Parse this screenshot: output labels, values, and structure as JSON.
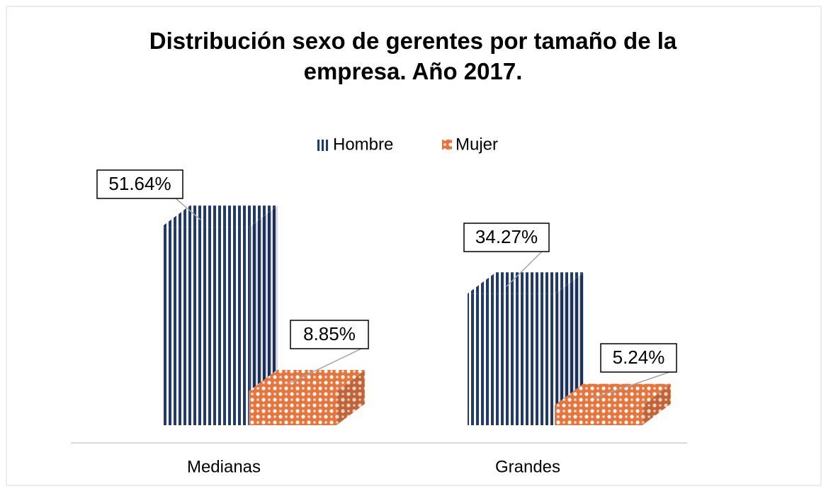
{
  "chart_data": {
    "type": "bar3d",
    "title": "Distribución sexo de gerentes por tamaño de la empresa. Año 2017.",
    "categories": [
      "Medianas",
      "Grandes"
    ],
    "series": [
      {
        "name": "Hombre",
        "color": "#1f3a6e",
        "values": [
          51.64,
          34.27
        ],
        "value_labels": [
          "51.64%",
          "34.27%"
        ]
      },
      {
        "name": "Mujer",
        "color": "#e8743b",
        "values": [
          8.85,
          5.24
        ],
        "value_labels": [
          "8.85%",
          "5.24%"
        ]
      }
    ],
    "legend": "top"
  }
}
